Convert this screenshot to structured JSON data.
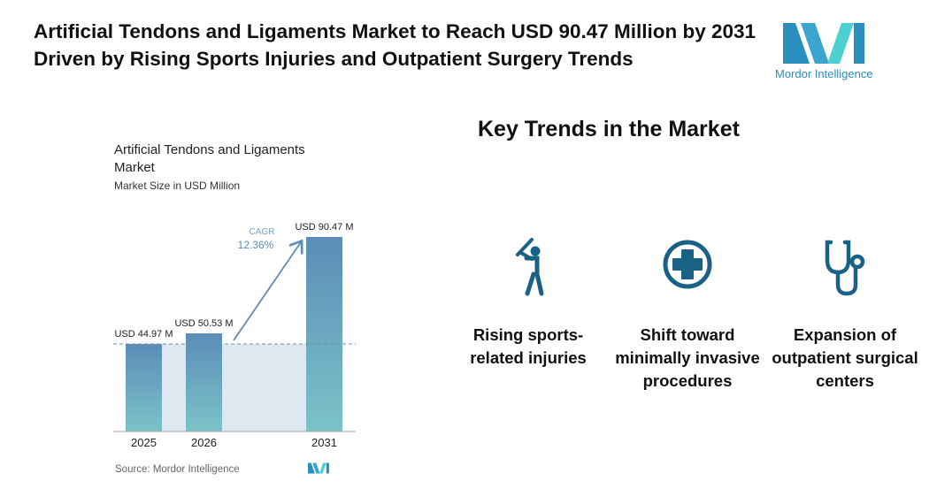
{
  "header": {
    "title": "Artificial Tendons and Ligaments Market to Reach USD 90.47 Million by 2031 Driven by Rising Sports Injuries and Outpatient Surgery Trends",
    "logo_text": "Mordor Intelligence"
  },
  "chart_data": {
    "type": "bar",
    "title": "Artificial Tendons and Ligaments Market",
    "subtitle": "Market Size in USD Million",
    "categories": [
      "2025",
      "2026",
      "2031"
    ],
    "values": [
      44.97,
      50.53,
      90.47
    ],
    "data_labels": [
      "USD 44.97 M",
      "USD 50.53 M",
      "USD 90.47 M"
    ],
    "cagr_label": "CAGR",
    "cagr_value": "12.36%",
    "source": "Source: Mordor Intelligence",
    "bar_color_top": "#5b8db8",
    "bar_color_bottom": "#7cc3c8",
    "grid": false
  },
  "trends": {
    "heading": "Key Trends in the Market",
    "items": [
      {
        "icon": "baseball-batter-icon",
        "label": "Rising sports-related injuries"
      },
      {
        "icon": "medical-cross-icon",
        "label": "Shift toward minimally invasive procedures"
      },
      {
        "icon": "stethoscope-icon",
        "label": "Expansion of outpatient surgical centers"
      }
    ],
    "icon_color": "#1a6285"
  }
}
